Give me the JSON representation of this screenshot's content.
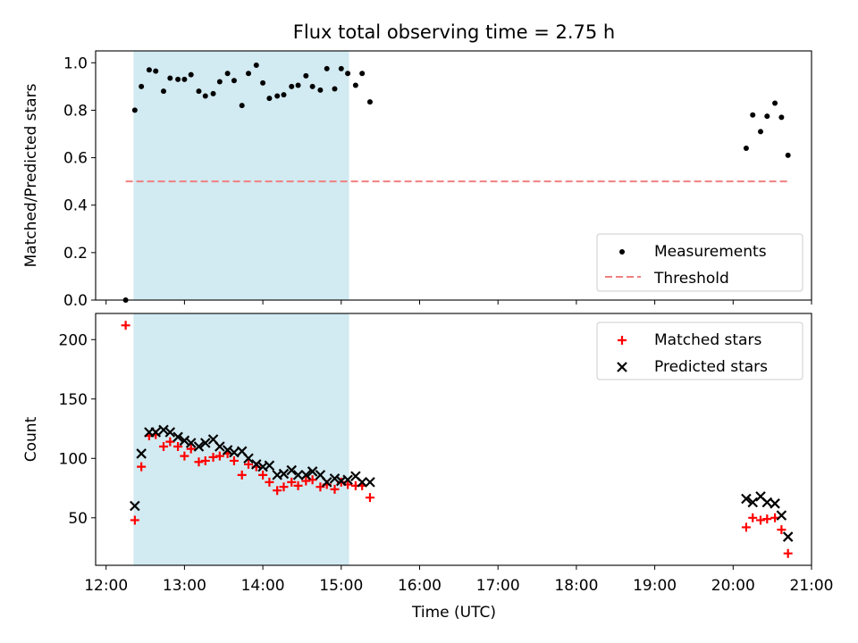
{
  "chart_data": {
    "title": "Flux total observing time = 2.75 h",
    "shaded_interval": [
      "12:21",
      "15:06"
    ],
    "shade_color": "#add8e6",
    "x_ticks": [
      "12:00",
      "13:00",
      "14:00",
      "15:00",
      "16:00",
      "17:00",
      "18:00",
      "19:00",
      "20:00",
      "21:00"
    ],
    "xlabel": "Time (UTC)",
    "xlim": [
      "11:52",
      "21:00"
    ],
    "panels": [
      {
        "type": "scatter",
        "ylabel": "Matched/Predicted stars",
        "ylim": [
          0,
          1.05
        ],
        "y_ticks": [
          "0.0",
          "0.2",
          "0.4",
          "0.6",
          "0.8",
          "1.0"
        ],
        "legend_position": "lower-right",
        "legend": [
          "Measurements",
          "Threshold"
        ],
        "series": [
          {
            "name": "Measurements",
            "color": "#000000",
            "marker": "dot",
            "points": [
              [
                "12:15",
                0.0
              ],
              [
                "12:22",
                0.8
              ],
              [
                "12:27",
                0.9
              ],
              [
                "12:33",
                0.97
              ],
              [
                "12:38",
                0.965
              ],
              [
                "12:44",
                0.88
              ],
              [
                "12:49",
                0.935
              ],
              [
                "12:55",
                0.93
              ],
              [
                "13:00",
                0.93
              ],
              [
                "13:05",
                0.95
              ],
              [
                "13:11",
                0.88
              ],
              [
                "13:16",
                0.86
              ],
              [
                "13:22",
                0.87
              ],
              [
                "13:27",
                0.92
              ],
              [
                "13:33",
                0.955
              ],
              [
                "13:38",
                0.925
              ],
              [
                "13:44",
                0.82
              ],
              [
                "13:49",
                0.955
              ],
              [
                "13:55",
                0.99
              ],
              [
                "14:00",
                0.915
              ],
              [
                "14:05",
                0.85
              ],
              [
                "14:11",
                0.86
              ],
              [
                "14:16",
                0.865
              ],
              [
                "14:22",
                0.9
              ],
              [
                "14:27",
                0.905
              ],
              [
                "14:33",
                0.945
              ],
              [
                "14:38",
                0.9
              ],
              [
                "14:44",
                0.885
              ],
              [
                "14:49",
                0.975
              ],
              [
                "14:55",
                0.89
              ],
              [
                "15:00",
                0.975
              ],
              [
                "15:05",
                0.955
              ],
              [
                "15:11",
                0.905
              ],
              [
                "15:16",
                0.955
              ],
              [
                "15:22",
                0.835
              ],
              [
                "20:10",
                0.64
              ],
              [
                "20:15",
                0.78
              ],
              [
                "20:21",
                0.71
              ],
              [
                "20:26",
                0.775
              ],
              [
                "20:32",
                0.83
              ],
              [
                "20:37",
                0.77
              ],
              [
                "20:42",
                0.61
              ]
            ]
          },
          {
            "name": "Threshold",
            "type": "line",
            "style": "dashed",
            "color": "#f08080",
            "points": [
              [
                "12:15",
                0.5
              ],
              [
                "20:42",
                0.5
              ]
            ]
          }
        ]
      },
      {
        "type": "scatter",
        "ylabel": "Count",
        "ylim": [
          10,
          222
        ],
        "y_ticks": [
          "50",
          "100",
          "150",
          "200"
        ],
        "legend_position": "upper-right",
        "legend": [
          "Matched stars",
          "Predicted stars"
        ],
        "series": [
          {
            "name": "Matched stars",
            "color": "#ff0000",
            "marker": "plus",
            "points": [
              [
                "12:15",
                212
              ],
              [
                "12:22",
                48
              ],
              [
                "12:27",
                93
              ],
              [
                "12:33",
                119
              ],
              [
                "12:38",
                120
              ],
              [
                "12:44",
                110
              ],
              [
                "12:49",
                114
              ],
              [
                "12:55",
                110
              ],
              [
                "13:00",
                102
              ],
              [
                "13:05",
                108
              ],
              [
                "13:11",
                97
              ],
              [
                "13:16",
                98
              ],
              [
                "13:22",
                101
              ],
              [
                "13:27",
                102
              ],
              [
                "13:33",
                104
              ],
              [
                "13:38",
                98
              ],
              [
                "13:44",
                86
              ],
              [
                "13:49",
                95
              ],
              [
                "13:55",
                93
              ],
              [
                "14:00",
                86
              ],
              [
                "14:05",
                80
              ],
              [
                "14:11",
                73
              ],
              [
                "14:16",
                76
              ],
              [
                "14:22",
                80
              ],
              [
                "14:27",
                77
              ],
              [
                "14:33",
                81
              ],
              [
                "14:38",
                82
              ],
              [
                "14:44",
                76
              ],
              [
                "14:49",
                78
              ],
              [
                "14:55",
                74
              ],
              [
                "15:00",
                80
              ],
              [
                "15:05",
                78
              ],
              [
                "15:11",
                77
              ],
              [
                "15:16",
                77
              ],
              [
                "15:22",
                67
              ],
              [
                "20:10",
                42
              ],
              [
                "20:15",
                50
              ],
              [
                "20:21",
                48
              ],
              [
                "20:26",
                49
              ],
              [
                "20:32",
                50
              ],
              [
                "20:37",
                40
              ],
              [
                "20:42",
                20
              ]
            ]
          },
          {
            "name": "Predicted stars",
            "color": "#000000",
            "marker": "x",
            "points": [
              [
                "12:22",
                60
              ],
              [
                "12:27",
                104
              ],
              [
                "12:33",
                122
              ],
              [
                "12:38",
                122
              ],
              [
                "12:44",
                124
              ],
              [
                "12:49",
                122
              ],
              [
                "12:55",
                118
              ],
              [
                "13:00",
                115
              ],
              [
                "13:05",
                113
              ],
              [
                "13:11",
                110
              ],
              [
                "13:16",
                113
              ],
              [
                "13:22",
                116
              ],
              [
                "13:27",
                110
              ],
              [
                "13:33",
                107
              ],
              [
                "13:38",
                105
              ],
              [
                "13:44",
                106
              ],
              [
                "13:49",
                100
              ],
              [
                "13:55",
                95
              ],
              [
                "14:00",
                93
              ],
              [
                "14:05",
                94
              ],
              [
                "14:11",
                86
              ],
              [
                "14:16",
                87
              ],
              [
                "14:22",
                90
              ],
              [
                "14:27",
                86
              ],
              [
                "14:33",
                86
              ],
              [
                "14:38",
                89
              ],
              [
                "14:44",
                86
              ],
              [
                "14:49",
                80
              ],
              [
                "14:55",
                83
              ],
              [
                "15:00",
                81
              ],
              [
                "15:05",
                82
              ],
              [
                "15:11",
                85
              ],
              [
                "15:16",
                80
              ],
              [
                "15:22",
                80
              ],
              [
                "20:10",
                66
              ],
              [
                "20:15",
                63
              ],
              [
                "20:21",
                68
              ],
              [
                "20:26",
                63
              ],
              [
                "20:32",
                62
              ],
              [
                "20:37",
                52
              ],
              [
                "20:42",
                34
              ]
            ]
          }
        ]
      }
    ]
  }
}
